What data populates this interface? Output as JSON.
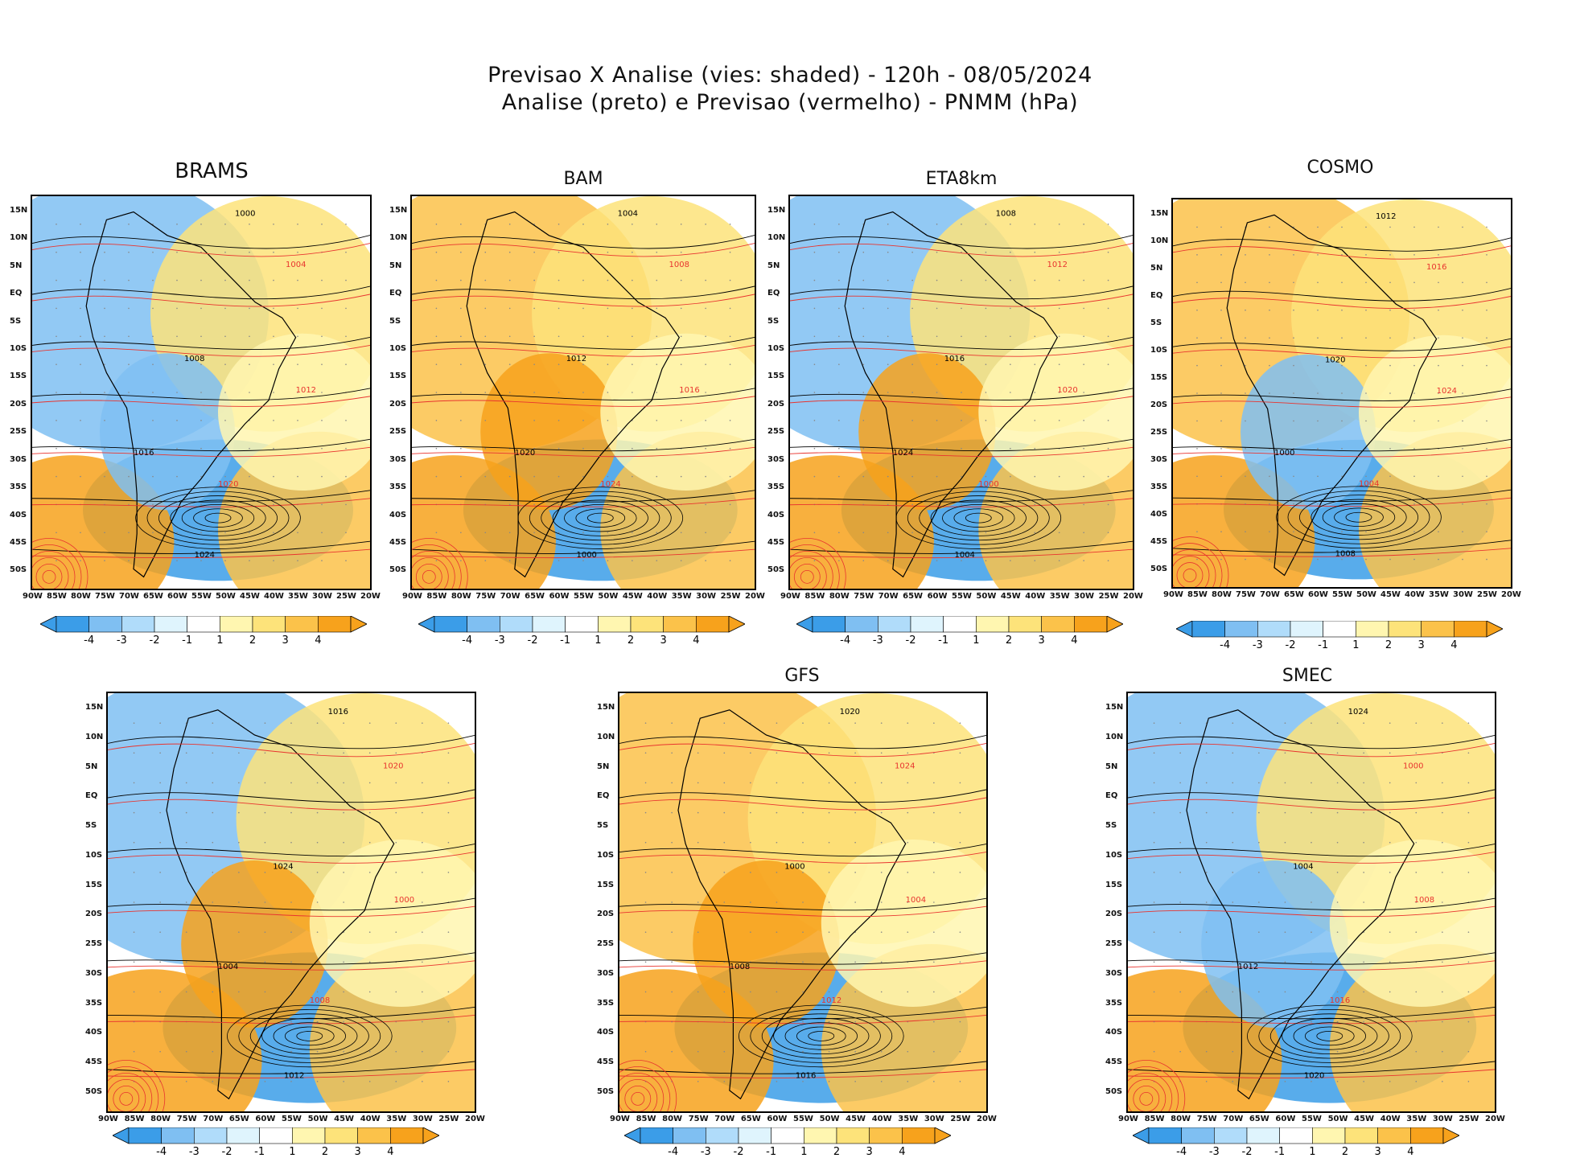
{
  "header": {
    "line1": "Previsao X Analise (vies: shaded) - 120h - 08/05/2024",
    "line2": "Analise (preto) e Previsao (vermelho) - PNMM (hPa)"
  },
  "panels": [
    {
      "title": "BRAMS"
    },
    {
      "title": "BAM"
    },
    {
      "title": "ETA8km"
    },
    {
      "title": "COSMO"
    },
    {
      "title": ""
    },
    {
      "title": "GFS"
    },
    {
      "title": "SMEC"
    }
  ],
  "lat_labels": [
    "15N",
    "10N",
    "5N",
    "EQ",
    "5S",
    "10S",
    "15S",
    "20S",
    "25S",
    "30S",
    "35S",
    "40S",
    "45S",
    "50S"
  ],
  "lon_labels": [
    "90W",
    "85W",
    "80W",
    "75W",
    "70W",
    "65W",
    "60W",
    "55W",
    "50W",
    "45W",
    "40W",
    "35W",
    "30W",
    "25W",
    "20W"
  ],
  "colorbar": {
    "ticks": [
      "-4",
      "-3",
      "-2",
      "-1",
      "1",
      "2",
      "3",
      "4"
    ],
    "colors": [
      "#3b9de8",
      "#7fbff2",
      "#b0dcfa",
      "#dff4fd",
      "#ffffff",
      "#fff6b0",
      "#fde37a",
      "#fbc24a",
      "#f7a21c"
    ]
  },
  "isobars": {
    "analysis_color": "#000000",
    "forecast_color": "#e8342f",
    "labels": [
      "1000",
      "1004",
      "1008",
      "1012",
      "1016",
      "1020",
      "1024"
    ]
  }
}
